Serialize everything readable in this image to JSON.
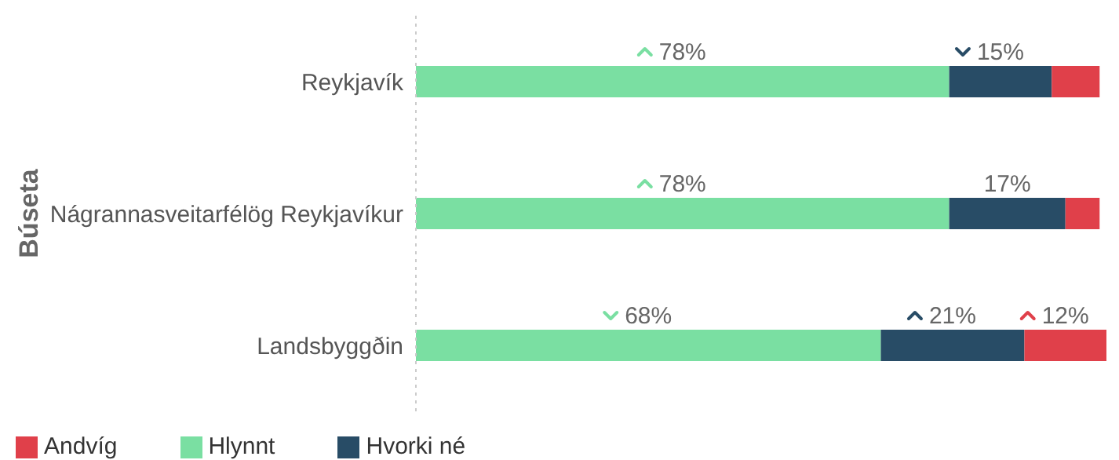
{
  "chart_data": {
    "type": "bar",
    "orientation": "horizontal",
    "stacked": true,
    "ylabel": "Búseta",
    "categories": [
      "Reykjavík",
      "Nágrannasveitarfélög Reykjavíkur",
      "Landsbyggðin"
    ],
    "series": [
      {
        "name": "Hlynnt",
        "color": "#7adfa2",
        "values": [
          78,
          78,
          68
        ],
        "value_labels": [
          "78%",
          "78%",
          "68%"
        ]
      },
      {
        "name": "Hvorki né",
        "color": "#284c66",
        "values": [
          15,
          17,
          21
        ],
        "value_labels": [
          "15%",
          "17%",
          "21%"
        ]
      },
      {
        "name": "Andvíg",
        "color": "#e0404a",
        "values": [
          7,
          5,
          12
        ],
        "value_labels": [
          null,
          null,
          "12%"
        ]
      }
    ],
    "tick_labels": "y",
    "legend": "bottom left"
  }
}
